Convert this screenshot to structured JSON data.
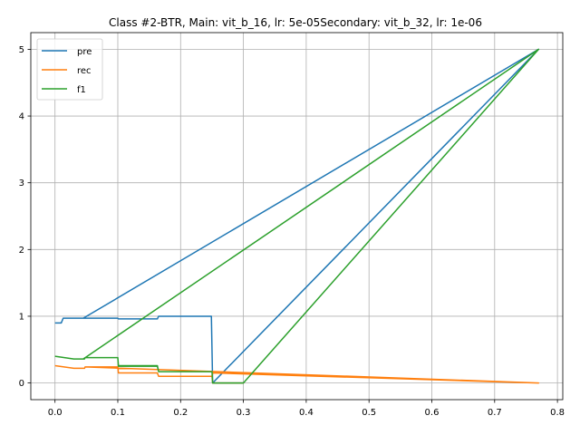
{
  "chart_data": {
    "type": "line",
    "title": "Class #2-BTR, Main: vit_b_16, lr: 5e-05Secondary: vit_b_32, lr: 1e-06",
    "xlabel": "",
    "ylabel": "",
    "xlim": [
      -0.0385,
      0.8085
    ],
    "ylim": [
      -0.25,
      5.25
    ],
    "xticks": [
      0.0,
      0.1,
      0.2,
      0.3,
      0.4,
      0.5,
      0.6,
      0.7,
      0.8
    ],
    "xtick_labels": [
      "0.0",
      "0.1",
      "0.2",
      "0.3",
      "0.4",
      "0.5",
      "0.6",
      "0.7",
      "0.8"
    ],
    "yticks": [
      0,
      1,
      2,
      3,
      4,
      5
    ],
    "ytick_labels": [
      "0",
      "1",
      "2",
      "3",
      "4",
      "5"
    ],
    "grid": true,
    "legend_position": "upper-left",
    "series": [
      {
        "name": "pre",
        "color": "#1f77b4",
        "points": [
          [
            0.0,
            0.9
          ],
          [
            0.01,
            0.9
          ],
          [
            0.013,
            0.97
          ],
          [
            0.1,
            0.97
          ],
          [
            0.101,
            0.96
          ],
          [
            0.163,
            0.96
          ],
          [
            0.165,
            1.0
          ],
          [
            0.249,
            1.0
          ],
          [
            0.251,
            0.0
          ],
          [
            0.77,
            5.0
          ],
          [
            0.045,
            0.97
          ],
          [
            0.1,
            0.97
          ],
          [
            0.101,
            0.96
          ],
          [
            0.163,
            0.96
          ],
          [
            0.165,
            1.0
          ],
          [
            0.249,
            1.0
          ],
          [
            0.251,
            0.0
          ],
          [
            0.3,
            0.0
          ]
        ]
      },
      {
        "name": "rec",
        "color": "#ff7f0e",
        "points": [
          [
            0.0,
            0.26
          ],
          [
            0.03,
            0.22
          ],
          [
            0.047,
            0.22
          ],
          [
            0.048,
            0.24
          ],
          [
            0.1,
            0.24
          ],
          [
            0.101,
            0.15
          ],
          [
            0.163,
            0.15
          ],
          [
            0.165,
            0.1
          ],
          [
            0.25,
            0.1
          ],
          [
            0.251,
            0.15
          ],
          [
            0.77,
            0.0
          ],
          [
            0.048,
            0.24
          ],
          [
            0.1,
            0.24
          ],
          [
            0.101,
            0.15
          ],
          [
            0.163,
            0.15
          ],
          [
            0.165,
            0.1
          ],
          [
            0.25,
            0.1
          ],
          [
            0.251,
            0.0
          ],
          [
            0.3,
            0.0
          ]
        ]
      },
      {
        "name": "f1",
        "color": "#2ca02c",
        "points": [
          [
            0.0,
            0.4
          ],
          [
            0.03,
            0.36
          ],
          [
            0.047,
            0.36
          ],
          [
            0.048,
            0.38
          ],
          [
            0.1,
            0.38
          ],
          [
            0.101,
            0.25
          ],
          [
            0.163,
            0.25
          ],
          [
            0.165,
            0.17
          ],
          [
            0.25,
            0.17
          ],
          [
            0.251,
            0.0
          ],
          [
            0.3,
            0.0
          ],
          [
            0.77,
            5.0
          ],
          [
            0.045,
            0.36
          ],
          [
            0.048,
            0.38
          ],
          [
            0.1,
            0.38
          ],
          [
            0.101,
            0.26
          ],
          [
            0.163,
            0.26
          ],
          [
            0.165,
            0.17
          ],
          [
            0.25,
            0.17
          ],
          [
            0.251,
            0.0
          ],
          [
            0.3,
            0.0
          ]
        ]
      }
    ]
  }
}
